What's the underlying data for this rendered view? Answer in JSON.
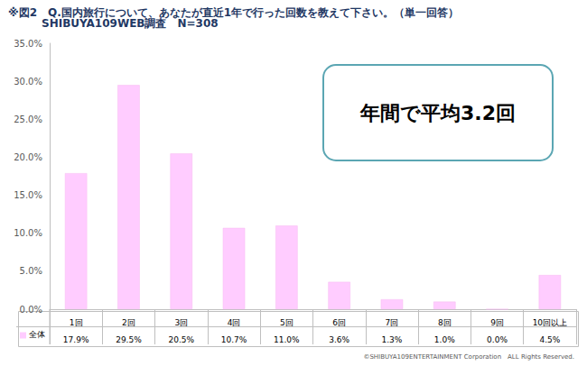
{
  "chart_data": {
    "type": "bar",
    "title": "※図2　Q.国内旅行について、あなたが直近1年で行った回数を教えて下さい。（単一回答）",
    "subtitle": "SHIBUYA109WEB調査　N=308",
    "annotations": [
      "年間で平均3.2回",
      "©SHIBUYA109ENTERTAINMENT Corporation　ALL Rights Reserved."
    ],
    "categories": [
      "1回",
      "2回",
      "3回",
      "4回",
      "5回",
      "6回",
      "7回",
      "8回",
      "9回",
      "10回以上"
    ],
    "series": [
      {
        "name": "全体",
        "color": "#ffccff",
        "values": [
          17.9,
          29.5,
          20.5,
          10.7,
          11.0,
          3.6,
          1.3,
          1.0,
          0.0,
          4.5
        ],
        "value_labels": [
          "17.9%",
          "29.5%",
          "20.5%",
          "10.7%",
          "11.0%",
          "3.6%",
          "1.3%",
          "1.0%",
          "0.0%",
          "4.5%"
        ]
      }
    ],
    "ylim": [
      0,
      35
    ],
    "yticks": [
      {
        "value": 0,
        "label": "0.0%"
      },
      {
        "value": 5,
        "label": "5.0%"
      },
      {
        "value": 10,
        "label": "10.0%"
      },
      {
        "value": 15,
        "label": "15.0%"
      },
      {
        "value": 20,
        "label": "20.0%"
      },
      {
        "value": 25,
        "label": "25.0%"
      },
      {
        "value": 30,
        "label": "30.0%"
      },
      {
        "value": 35,
        "label": "35.0%"
      }
    ],
    "grid": false,
    "data_labels": false
  }
}
